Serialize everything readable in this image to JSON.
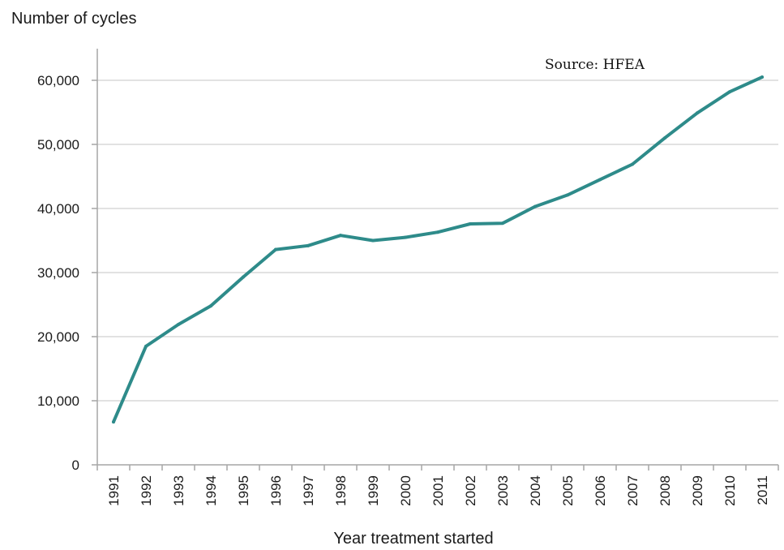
{
  "chart_data": {
    "type": "line",
    "title": "",
    "ylabel": "Number of cycles",
    "xlabel": "Year treatment started",
    "annotation": "Source: HFEA",
    "x": [
      "1991",
      "1992",
      "1993",
      "1994",
      "1995",
      "1996",
      "1997",
      "1998",
      "1999",
      "2000",
      "2001",
      "2002",
      "2003",
      "2004",
      "2005",
      "2006",
      "2007",
      "2008",
      "2009",
      "2010",
      "2011"
    ],
    "series": [
      {
        "name": "",
        "color": "#2e8b8a",
        "values": [
          6700,
          18500,
          21900,
          24800,
          29300,
          33600,
          34200,
          35800,
          35000,
          35500,
          36300,
          37600,
          37700,
          40300,
          42100,
          44500,
          46900,
          51000,
          54900,
          58200,
          60500
        ]
      }
    ],
    "ylim": [
      0,
      60000
    ],
    "yticks": [
      0,
      10000,
      20000,
      30000,
      40000,
      50000,
      60000
    ],
    "ytick_labels": [
      "0",
      "10,000",
      "20,000",
      "30,000",
      "40,000",
      "50,000",
      "60,000"
    ],
    "grid": true,
    "axis_color": "#a6a6a6",
    "grid_color": "#d0d0d0"
  }
}
